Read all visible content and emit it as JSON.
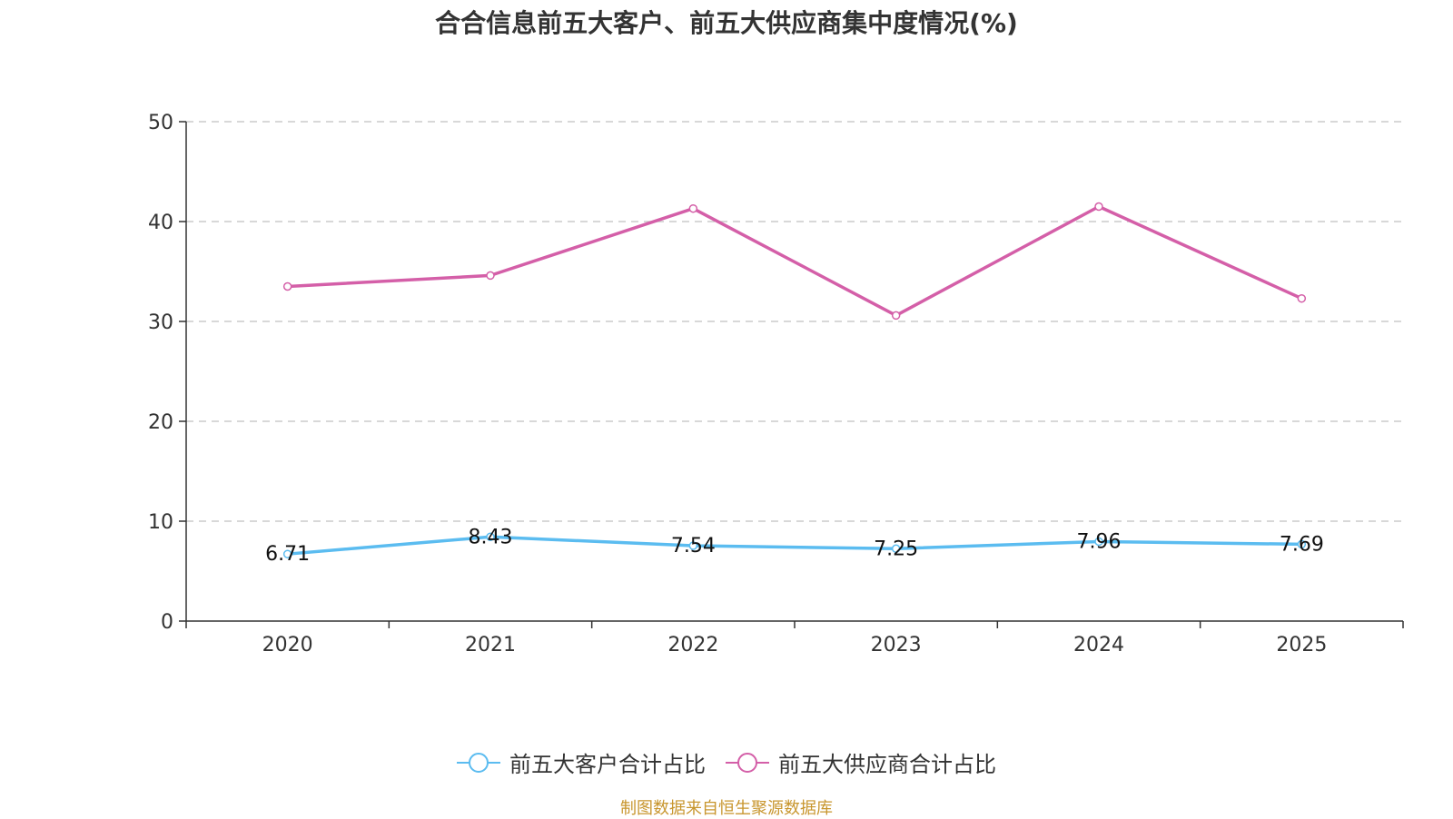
{
  "chart_data": {
    "type": "line",
    "title": "合合信息前五大客户、前五大供应商集中度情况(%)",
    "categories": [
      "2020",
      "2021",
      "2022",
      "2023",
      "2024",
      "2025"
    ],
    "ylim": [
      0,
      50
    ],
    "yticks": [
      0,
      10,
      20,
      30,
      40,
      50
    ],
    "grid": true,
    "legend_position": "bottom",
    "series": [
      {
        "name": "前五大客户合计占比",
        "color": "#5bbcf0",
        "values": [
          6.71,
          8.43,
          7.54,
          7.25,
          7.96,
          7.69
        ],
        "labels": [
          "6.71",
          "8.43",
          "7.54",
          "7.25",
          "7.96",
          "7.69"
        ]
      },
      {
        "name": "前五大供应商合计占比",
        "color": "#d45fa8",
        "values": [
          33.5,
          34.6,
          41.3,
          30.6,
          41.5,
          32.3
        ]
      }
    ]
  },
  "source": "制图数据来自恒生聚源数据库"
}
